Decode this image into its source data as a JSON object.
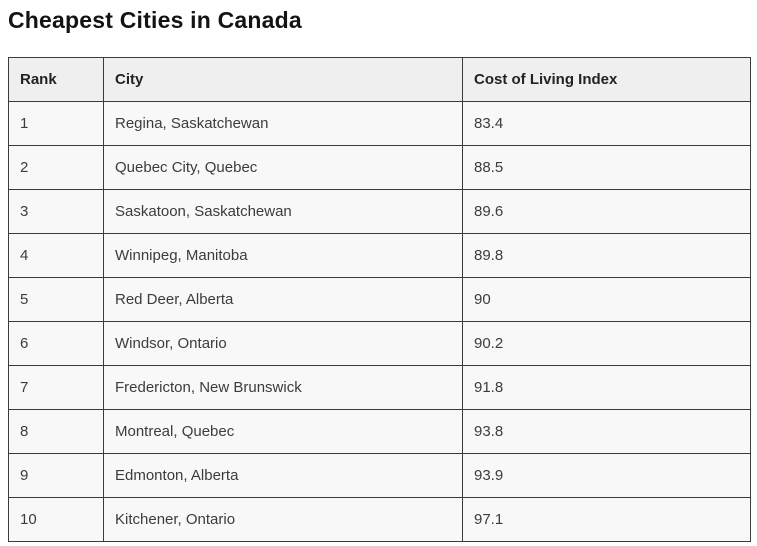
{
  "title": "Cheapest Cities in Canada",
  "table": {
    "headers": [
      "Rank",
      "City",
      "Cost of Living Index"
    ],
    "rows": [
      {
        "rank": "1",
        "city": "Regina, Saskatchewan",
        "index": "83.4"
      },
      {
        "rank": "2",
        "city": "Quebec City, Quebec",
        "index": "88.5"
      },
      {
        "rank": "3",
        "city": "Saskatoon, Saskatchewan",
        "index": "89.6"
      },
      {
        "rank": "4",
        "city": "Winnipeg, Manitoba",
        "index": "89.8"
      },
      {
        "rank": "5",
        "city": "Red Deer, Alberta",
        "index": "90"
      },
      {
        "rank": "6",
        "city": "Windsor, Ontario",
        "index": "90.2"
      },
      {
        "rank": "7",
        "city": "Fredericton, New Brunswick",
        "index": "91.8"
      },
      {
        "rank": "8",
        "city": "Montreal, Quebec",
        "index": "93.8"
      },
      {
        "rank": "9",
        "city": "Edmonton, Alberta",
        "index": "93.9"
      },
      {
        "rank": "10",
        "city": "Kitchener, Ontario",
        "index": "97.1"
      }
    ]
  },
  "colors": {
    "border": "#3b3b3b",
    "header_background": "#efefef",
    "row_background": "#f8f8f8",
    "title_text": "#131313",
    "cell_text": "#3c3c3c"
  },
  "chart_data": {
    "type": "table",
    "title": "Cheapest Cities in Canada",
    "columns": [
      "Rank",
      "City",
      "Cost of Living Index"
    ],
    "categories": [
      "Regina, Saskatchewan",
      "Quebec City, Quebec",
      "Saskatoon, Saskatchewan",
      "Winnipeg, Manitoba",
      "Red Deer, Alberta",
      "Windsor, Ontario",
      "Fredericton, New Brunswick",
      "Montreal, Quebec",
      "Edmonton, Alberta",
      "Kitchener, Ontario"
    ],
    "values": [
      83.4,
      88.5,
      89.6,
      89.8,
      90,
      90.2,
      91.8,
      93.8,
      93.9,
      97.1
    ],
    "value_label": "Cost of Living Index"
  }
}
